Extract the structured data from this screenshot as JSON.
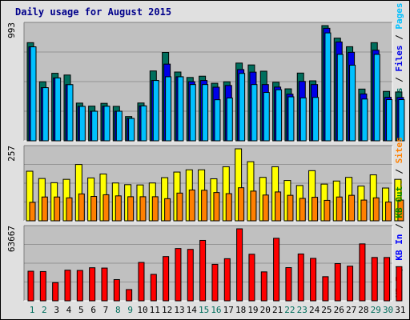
{
  "chart_data": {
    "title": "Daily usage for August 2015",
    "type": "bar",
    "days": [
      "1",
      "2",
      "3",
      "4",
      "5",
      "6",
      "7",
      "8",
      "9",
      "10",
      "11",
      "12",
      "13",
      "14",
      "15",
      "16",
      "17",
      "18",
      "19",
      "20",
      "21",
      "22",
      "23",
      "24",
      "25",
      "26",
      "27",
      "28",
      "29",
      "30",
      "31"
    ],
    "weekend_days": [
      "1",
      "2",
      "8",
      "9",
      "15",
      "16",
      "22",
      "23",
      "29",
      "30"
    ],
    "colors": {
      "background": "#e0e0e0",
      "plot": "#c0c0c0",
      "hits": "#006e5d",
      "files": "#0000e8",
      "pages": "#00c0ff",
      "visits": "#ffff00",
      "sites": "#ff8000",
      "kbin": "#0000ff",
      "kbout": "#008000",
      "kbf": "#ff0000",
      "title": "#00008b",
      "weekday": "#000000",
      "weekend": "#006e5d"
    },
    "panels": [
      {
        "id": "hits-panel",
        "ymax": 993,
        "ymax_label": "993",
        "series": [
          {
            "name": "Hits",
            "color": "#006e5d",
            "values": [
              846,
              509,
              582,
              567,
              325,
              299,
              323,
              297,
              209,
              326,
              602,
              762,
              593,
              546,
              557,
              496,
              509,
              670,
              654,
              600,
              505,
              448,
              584,
              517,
              993,
              885,
              811,
              446,
              846,
              426,
              421
            ]
          },
          {
            "name": "Files",
            "color": "#0000e8",
            "values": [
              810,
              458,
              542,
              484,
              297,
              255,
              298,
              255,
              193,
              301,
              520,
              661,
              552,
              510,
              520,
              462,
              477,
              614,
              592,
              485,
              463,
              402,
              512,
              485,
              970,
              852,
              763,
              404,
              781,
              375,
              374
            ]
          },
          {
            "name": "Pages",
            "color": "#00c0ff",
            "values": [
              810,
              458,
              542,
              484,
              297,
              255,
              298,
              255,
              193,
              301,
              520,
              552,
              552,
              485,
              485,
              354,
              369,
              581,
              485,
              417,
              440,
              379,
              370,
              374,
              930,
              745,
              652,
              360,
              745,
              355,
              355
            ]
          }
        ],
        "right_labels": [
          {
            "text": "Hits",
            "color": "#006e5d"
          },
          {
            "text": " / ",
            "color": "#000000"
          },
          {
            "text": "Files",
            "color": "#0000e8"
          },
          {
            "text": " / ",
            "color": "#000000"
          },
          {
            "text": "Pages",
            "color": "#00c0ff"
          }
        ]
      },
      {
        "id": "visits-panel",
        "ymax": 257,
        "ymax_label": "257",
        "series": [
          {
            "name": "Visits",
            "color": "#ffff00",
            "values": [
              177,
              151,
              136,
              148,
              201,
              153,
              167,
              135,
              129,
              128,
              135,
              154,
              174,
              182,
              182,
              150,
              193,
              257,
              211,
              155,
              193,
              144,
              126,
              179,
              131,
              142,
              155,
              124,
              164,
              117,
              148
            ]
          },
          {
            "name": "Sites",
            "color": "#ff8000",
            "values": [
              66,
              85,
              85,
              82,
              96,
              87,
              93,
              89,
              86,
              86,
              86,
              79,
              99,
              110,
              109,
              101,
              97,
              118,
              106,
              92,
              103,
              91,
              80,
              84,
              73,
              85,
              91,
              74,
              82,
              67,
              74
            ]
          }
        ],
        "right_labels": [
          {
            "text": "Visits",
            "color": "#ffff00"
          },
          {
            "text": " / ",
            "color": "#000000"
          },
          {
            "text": "Sites",
            "color": "#ff8000"
          }
        ]
      },
      {
        "id": "kbytes-panel",
        "ymax": 63667,
        "ymax_label": "63667",
        "series": [
          {
            "name": "KB F",
            "color": "#ff0000",
            "values": [
              26170,
              25880,
              16080,
              27080,
              26840,
              29230,
              28960,
              18760,
              9950,
              33920,
              23380,
              39130,
              46230,
              45480,
              53430,
              32270,
              37240,
              63667,
              41190,
              25580,
              55300,
              29350,
              41420,
              37520,
              21330,
              32900,
              30630,
              50330,
              38320,
              38300,
              30180
            ]
          }
        ],
        "right_labels": [
          {
            "text": "KB F",
            "color": "#ff0000"
          },
          {
            "text": " / ",
            "color": "#000000"
          },
          {
            "text": "KB In",
            "color": "#0000ff"
          },
          {
            "text": " / ",
            "color": "#000000"
          },
          {
            "text": "KB Out",
            "color": "#008000"
          }
        ]
      }
    ]
  }
}
